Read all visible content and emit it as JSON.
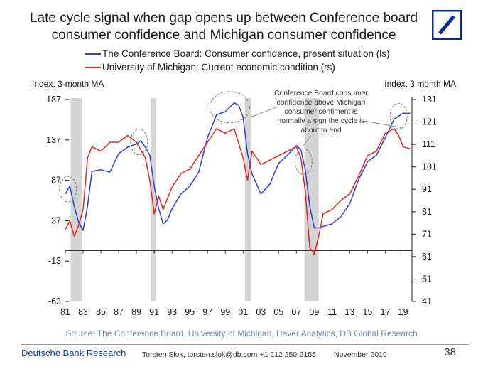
{
  "title": "Late cycle signal when gap opens up between Conference board consumer confidence and Michigan consumer confidence",
  "logo_icon": "deutsche-bank-slash-icon",
  "legend": [
    {
      "label": "The Conference Board: Consumer confidence, present situation (ls)",
      "color": "#2b3fe0"
    },
    {
      "label": "University of Michigan: Current economic condition (rs)",
      "color": "#e8251d"
    }
  ],
  "left_axis_label": "Index, 3-month MA",
  "right_axis_label": "Index, 3 month MA",
  "annotation": [
    "Conference Board consumer",
    "confidence above Michigan",
    "consumer sentiment is",
    "normally a sign the cycle is",
    "about to end"
  ],
  "source": "Source: The Conference Board, University of Michigan, Haver Analytics, DB Global Research",
  "footer": {
    "brand": "Deutsche Bank Research",
    "author": "Torsten Slok, torsten.slok@db.com +1 212 250-2155",
    "date": "November 2019",
    "page": "38"
  },
  "chart_data": {
    "type": "line",
    "title": "Late cycle signal when gap opens up between Conference board consumer confidence and Michigan consumer confidence",
    "x_ticks": [
      "81",
      "83",
      "85",
      "87",
      "89",
      "91",
      "93",
      "95",
      "97",
      "99",
      "01",
      "03",
      "05",
      "07",
      "09",
      "11",
      "13",
      "15",
      "17",
      "19"
    ],
    "x_range": [
      1981,
      2020
    ],
    "left_axis": {
      "ticks": [
        187,
        137,
        87,
        37,
        -13,
        -63
      ],
      "range": [
        -63,
        187
      ]
    },
    "right_axis": {
      "ticks": [
        131,
        121,
        111,
        101,
        91,
        81,
        71,
        61,
        51,
        41
      ],
      "range": [
        41,
        131
      ]
    },
    "recessions": [
      [
        1981.6,
        1982.9
      ],
      [
        1990.6,
        1991.2
      ],
      [
        2001.2,
        2001.9
      ],
      [
        2007.9,
        2009.5
      ]
    ],
    "highlight_circles": [
      1981.3,
      1989.3,
      1999.5,
      2007.8,
      2018.5
    ],
    "series": [
      {
        "name": "The Conference Board: Consumer confidence, present situation (ls)",
        "axis": "left",
        "color": "#2b3fe0",
        "x": [
          1981,
          1981.5,
          1982,
          1982.5,
          1983,
          1983.5,
          1984,
          1985,
          1986,
          1987,
          1988,
          1989,
          1989.5,
          1990,
          1990.5,
          1991,
          1991.5,
          1992,
          1992.5,
          1993,
          1994,
          1995,
          1996,
          1997,
          1998,
          1999,
          2000,
          2000.5,
          2001,
          2001.5,
          2002,
          2003,
          2004,
          2005,
          2006,
          2007,
          2007.5,
          2008,
          2008.5,
          2009,
          2009.5,
          2010,
          2011,
          2012,
          2013,
          2014,
          2015,
          2016,
          2017,
          2018,
          2019,
          2019.8
        ],
        "values": [
          70,
          80,
          55,
          35,
          25,
          55,
          98,
          100,
          97,
          120,
          128,
          132,
          136,
          128,
          118,
          80,
          52,
          33,
          38,
          52,
          70,
          80,
          97,
          140,
          168,
          172,
          183,
          180,
          165,
          120,
          95,
          70,
          82,
          108,
          118,
          130,
          125,
          100,
          55,
          28,
          28,
          30,
          33,
          42,
          58,
          88,
          110,
          118,
          140,
          163,
          170,
          170
        ]
      },
      {
        "name": "University of Michigan: Current economic condition (rs)",
        "axis": "right",
        "color": "#e8251d",
        "x": [
          1981,
          1981.5,
          1982,
          1982.5,
          1983,
          1983.5,
          1984,
          1985,
          1986,
          1987,
          1988,
          1989,
          1990,
          1990.5,
          1991,
          1991.5,
          1992,
          1993,
          1994,
          1995,
          1996,
          1997,
          1998,
          1999,
          2000,
          2001,
          2001.5,
          2002,
          2003,
          2004,
          2005,
          2006,
          2007,
          2007.5,
          2008,
          2008.5,
          2009,
          2009.5,
          2010,
          2011,
          2012,
          2013,
          2014,
          2015,
          2016,
          2017,
          2018,
          2018.5,
          2019,
          2019.8
        ],
        "values": [
          73,
          77,
          70,
          75,
          82,
          105,
          110,
          108,
          112,
          112,
          115,
          112,
          105,
          95,
          80,
          88,
          82,
          92,
          98,
          100,
          106,
          112,
          118,
          116,
          118,
          105,
          95,
          108,
          102,
          104,
          106,
          108,
          110,
          105,
          90,
          65,
          62,
          70,
          80,
          82,
          86,
          89,
          97,
          106,
          108,
          116,
          118,
          115,
          110,
          109
        ]
      }
    ]
  }
}
